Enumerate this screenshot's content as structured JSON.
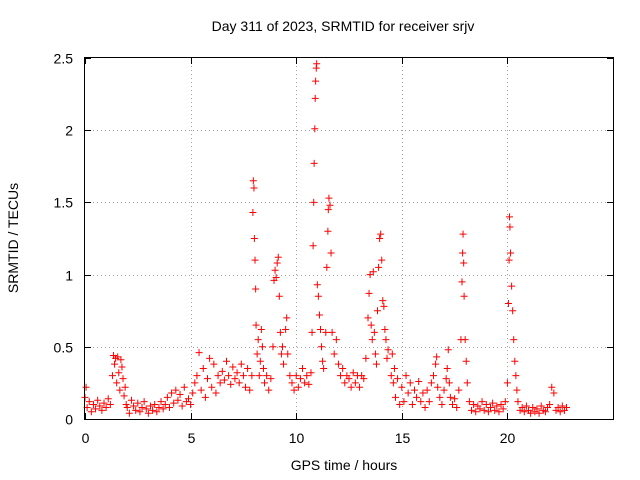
{
  "chart_data": {
    "type": "scatter",
    "title": "Day 311 of 2023, SRMTID for receiver srjv",
    "xlabel": "GPS time / hours",
    "ylabel": "SRMTID / TECUs",
    "xlim": [
      0,
      25
    ],
    "ylim": [
      0,
      2.5
    ],
    "x_ticks": [
      0,
      5,
      10,
      15,
      20
    ],
    "x_tick_labels": [
      "0",
      "5",
      "10",
      "15",
      "20"
    ],
    "y_ticks": [
      0,
      0.5,
      1,
      1.5,
      2,
      2.5
    ],
    "y_tick_labels": [
      "0",
      "0.5",
      "1",
      "1.5",
      "2",
      "2.5"
    ],
    "grid": true,
    "marker": "+",
    "series": [
      {
        "name": "srjv",
        "color": "#ff0000",
        "points": [
          [
            0.0,
            0.15
          ],
          [
            0.05,
            0.22
          ],
          [
            0.1,
            0.08
          ],
          [
            0.2,
            0.12
          ],
          [
            0.3,
            0.05
          ],
          [
            0.4,
            0.1
          ],
          [
            0.5,
            0.07
          ],
          [
            0.6,
            0.13
          ],
          [
            0.7,
            0.09
          ],
          [
            0.8,
            0.06
          ],
          [
            0.9,
            0.11
          ],
          [
            1.0,
            0.08
          ],
          [
            1.1,
            0.14
          ],
          [
            1.2,
            0.1
          ],
          [
            1.3,
            0.3
          ],
          [
            1.35,
            0.44
          ],
          [
            1.4,
            0.38
          ],
          [
            1.45,
            0.42
          ],
          [
            1.5,
            0.25
          ],
          [
            1.55,
            0.43
          ],
          [
            1.6,
            0.32
          ],
          [
            1.65,
            0.2
          ],
          [
            1.7,
            0.41
          ],
          [
            1.75,
            0.36
          ],
          [
            1.8,
            0.28
          ],
          [
            1.85,
            0.16
          ],
          [
            1.9,
            0.22
          ],
          [
            1.95,
            0.1
          ],
          [
            2.0,
            0.08
          ],
          [
            2.1,
            0.04
          ],
          [
            2.2,
            0.13
          ],
          [
            2.3,
            0.09
          ],
          [
            2.4,
            0.06
          ],
          [
            2.5,
            0.11
          ],
          [
            2.6,
            0.05
          ],
          [
            2.7,
            0.08
          ],
          [
            2.8,
            0.12
          ],
          [
            2.9,
            0.07
          ],
          [
            3.0,
            0.04
          ],
          [
            3.1,
            0.09
          ],
          [
            3.2,
            0.06
          ],
          [
            3.3,
            0.1
          ],
          [
            3.4,
            0.05
          ],
          [
            3.5,
            0.08
          ],
          [
            3.6,
            0.12
          ],
          [
            3.7,
            0.07
          ],
          [
            3.8,
            0.1
          ],
          [
            3.9,
            0.15
          ],
          [
            4.0,
            0.08
          ],
          [
            4.1,
            0.18
          ],
          [
            4.2,
            0.11
          ],
          [
            4.3,
            0.2
          ],
          [
            4.4,
            0.13
          ],
          [
            4.5,
            0.17
          ],
          [
            4.6,
            0.09
          ],
          [
            4.7,
            0.22
          ],
          [
            4.8,
            0.12
          ],
          [
            4.9,
            0.14
          ],
          [
            5.0,
            0.1
          ],
          [
            5.1,
            0.18
          ],
          [
            5.2,
            0.25
          ],
          [
            5.3,
            0.3
          ],
          [
            5.4,
            0.46
          ],
          [
            5.5,
            0.2
          ],
          [
            5.6,
            0.35
          ],
          [
            5.7,
            0.15
          ],
          [
            5.8,
            0.28
          ],
          [
            5.9,
            0.42
          ],
          [
            6.0,
            0.22
          ],
          [
            6.1,
            0.38
          ],
          [
            6.2,
            0.18
          ],
          [
            6.3,
            0.3
          ],
          [
            6.4,
            0.25
          ],
          [
            6.5,
            0.33
          ],
          [
            6.6,
            0.27
          ],
          [
            6.7,
            0.4
          ],
          [
            6.8,
            0.3
          ],
          [
            6.9,
            0.24
          ],
          [
            7.0,
            0.36
          ],
          [
            7.1,
            0.28
          ],
          [
            7.2,
            0.32
          ],
          [
            7.3,
            0.25
          ],
          [
            7.4,
            0.38
          ],
          [
            7.5,
            0.3
          ],
          [
            7.6,
            0.22
          ],
          [
            7.7,
            0.35
          ],
          [
            7.8,
            0.2
          ],
          [
            7.9,
            0.3
          ],
          [
            7.95,
            1.43
          ],
          [
            7.97,
            1.65
          ],
          [
            8.0,
            1.6
          ],
          [
            8.02,
            1.25
          ],
          [
            8.05,
            1.1
          ],
          [
            8.08,
            0.9
          ],
          [
            8.1,
            0.65
          ],
          [
            8.15,
            0.45
          ],
          [
            8.2,
            0.55
          ],
          [
            8.25,
            0.3
          ],
          [
            8.3,
            0.4
          ],
          [
            8.35,
            0.62
          ],
          [
            8.4,
            0.5
          ],
          [
            8.45,
            0.35
          ],
          [
            8.5,
            0.25
          ],
          [
            8.6,
            0.3
          ],
          [
            8.7,
            0.2
          ],
          [
            8.8,
            0.28
          ],
          [
            8.9,
            0.5
          ],
          [
            8.95,
            0.96
          ],
          [
            9.0,
            1.03
          ],
          [
            9.05,
            0.98
          ],
          [
            9.1,
            1.08
          ],
          [
            9.15,
            1.12
          ],
          [
            9.2,
            0.85
          ],
          [
            9.25,
            0.6
          ],
          [
            9.3,
            0.45
          ],
          [
            9.35,
            0.5
          ],
          [
            9.4,
            0.38
          ],
          [
            9.5,
            0.62
          ],
          [
            9.55,
            0.7
          ],
          [
            9.6,
            0.45
          ],
          [
            9.7,
            0.3
          ],
          [
            9.8,
            0.25
          ],
          [
            9.9,
            0.2
          ],
          [
            10.0,
            0.3
          ],
          [
            10.1,
            0.22
          ],
          [
            10.2,
            0.28
          ],
          [
            10.3,
            0.35
          ],
          [
            10.4,
            0.25
          ],
          [
            10.5,
            0.3
          ],
          [
            10.6,
            0.24
          ],
          [
            10.7,
            0.32
          ],
          [
            10.75,
            0.6
          ],
          [
            10.8,
            1.2
          ],
          [
            10.83,
            1.5
          ],
          [
            10.85,
            1.77
          ],
          [
            10.88,
            2.01
          ],
          [
            10.9,
            2.22
          ],
          [
            10.92,
            2.34
          ],
          [
            10.95,
            2.43
          ],
          [
            10.97,
            2.46
          ],
          [
            11.0,
            0.93
          ],
          [
            11.05,
            0.85
          ],
          [
            11.1,
            0.72
          ],
          [
            11.15,
            0.62
          ],
          [
            11.2,
            0.5
          ],
          [
            11.25,
            0.4
          ],
          [
            11.3,
            0.35
          ],
          [
            11.4,
            0.6
          ],
          [
            11.45,
            1.05
          ],
          [
            11.5,
            1.3
          ],
          [
            11.52,
            1.45
          ],
          [
            11.55,
            1.53
          ],
          [
            11.6,
            1.48
          ],
          [
            11.65,
            1.15
          ],
          [
            11.7,
            0.6
          ],
          [
            11.8,
            0.45
          ],
          [
            11.9,
            0.55
          ],
          [
            12.0,
            0.38
          ],
          [
            12.1,
            0.3
          ],
          [
            12.2,
            0.35
          ],
          [
            12.3,
            0.25
          ],
          [
            12.4,
            0.3
          ],
          [
            12.5,
            0.28
          ],
          [
            12.6,
            0.22
          ],
          [
            12.7,
            0.32
          ],
          [
            12.8,
            0.25
          ],
          [
            12.9,
            0.3
          ],
          [
            13.0,
            0.22
          ],
          [
            13.1,
            0.3
          ],
          [
            13.2,
            0.28
          ],
          [
            13.3,
            0.42
          ],
          [
            13.4,
            0.7
          ],
          [
            13.45,
            0.87
          ],
          [
            13.5,
            1.0
          ],
          [
            13.55,
            0.65
          ],
          [
            13.6,
            0.55
          ],
          [
            13.65,
            1.02
          ],
          [
            13.7,
            0.6
          ],
          [
            13.75,
            0.45
          ],
          [
            13.8,
            0.38
          ],
          [
            13.85,
            0.75
          ],
          [
            13.9,
            1.05
          ],
          [
            13.95,
            1.25
          ],
          [
            14.0,
            1.28
          ],
          [
            14.05,
            1.1
          ],
          [
            14.1,
            0.82
          ],
          [
            14.15,
            0.78
          ],
          [
            14.2,
            0.62
          ],
          [
            14.25,
            0.55
          ],
          [
            14.3,
            0.42
          ],
          [
            14.35,
            0.48
          ],
          [
            14.5,
            0.3
          ],
          [
            14.55,
            0.45
          ],
          [
            14.6,
            0.25
          ],
          [
            14.65,
            0.35
          ],
          [
            14.7,
            0.15
          ],
          [
            14.8,
            0.28
          ],
          [
            14.9,
            0.1
          ],
          [
            15.0,
            0.22
          ],
          [
            15.1,
            0.12
          ],
          [
            15.2,
            0.3
          ],
          [
            15.3,
            0.18
          ],
          [
            15.4,
            0.25
          ],
          [
            15.5,
            0.1
          ],
          [
            15.6,
            0.2
          ],
          [
            15.7,
            0.15
          ],
          [
            15.8,
            0.26
          ],
          [
            15.9,
            0.12
          ],
          [
            16.0,
            0.18
          ],
          [
            16.1,
            0.08
          ],
          [
            16.2,
            0.2
          ],
          [
            16.3,
            0.12
          ],
          [
            16.4,
            0.25
          ],
          [
            16.5,
            0.3
          ],
          [
            16.6,
            0.38
          ],
          [
            16.65,
            0.43
          ],
          [
            16.7,
            0.22
          ],
          [
            16.8,
            0.15
          ],
          [
            16.9,
            0.1
          ],
          [
            17.0,
            0.2
          ],
          [
            17.1,
            0.28
          ],
          [
            17.15,
            0.35
          ],
          [
            17.2,
            0.48
          ],
          [
            17.25,
            0.25
          ],
          [
            17.3,
            0.15
          ],
          [
            17.4,
            0.1
          ],
          [
            17.5,
            0.14
          ],
          [
            17.6,
            0.08
          ],
          [
            17.7,
            0.2
          ],
          [
            17.8,
            0.55
          ],
          [
            17.85,
            0.95
          ],
          [
            17.88,
            1.15
          ],
          [
            17.9,
            1.28
          ],
          [
            17.93,
            1.08
          ],
          [
            17.95,
            0.85
          ],
          [
            18.0,
            0.55
          ],
          [
            18.05,
            0.4
          ],
          [
            18.1,
            0.25
          ],
          [
            18.2,
            0.12
          ],
          [
            18.3,
            0.06
          ],
          [
            18.4,
            0.1
          ],
          [
            18.5,
            0.05
          ],
          [
            18.6,
            0.09
          ],
          [
            18.7,
            0.07
          ],
          [
            18.8,
            0.12
          ],
          [
            18.9,
            0.06
          ],
          [
            19.0,
            0.1
          ],
          [
            19.1,
            0.05
          ],
          [
            19.2,
            0.08
          ],
          [
            19.3,
            0.11
          ],
          [
            19.4,
            0.06
          ],
          [
            19.5,
            0.09
          ],
          [
            19.6,
            0.05
          ],
          [
            19.7,
            0.1
          ],
          [
            19.8,
            0.07
          ],
          [
            19.9,
            0.12
          ],
          [
            20.0,
            0.25
          ],
          [
            20.05,
            0.8
          ],
          [
            20.08,
            1.1
          ],
          [
            20.1,
            1.4
          ],
          [
            20.12,
            1.33
          ],
          [
            20.15,
            1.15
          ],
          [
            20.2,
            0.92
          ],
          [
            20.25,
            0.75
          ],
          [
            20.3,
            0.55
          ],
          [
            20.35,
            0.4
          ],
          [
            20.4,
            0.3
          ],
          [
            20.45,
            0.2
          ],
          [
            20.5,
            0.12
          ],
          [
            20.6,
            0.06
          ],
          [
            20.7,
            0.08
          ],
          [
            20.8,
            0.05
          ],
          [
            20.9,
            0.09
          ],
          [
            21.0,
            0.06
          ],
          [
            21.1,
            0.04
          ],
          [
            21.2,
            0.08
          ],
          [
            21.3,
            0.05
          ],
          [
            21.4,
            0.07
          ],
          [
            21.5,
            0.04
          ],
          [
            21.6,
            0.09
          ],
          [
            21.7,
            0.06
          ],
          [
            21.8,
            0.05
          ],
          [
            21.9,
            0.08
          ],
          [
            22.0,
            0.1
          ],
          [
            22.1,
            0.22
          ],
          [
            22.2,
            0.18
          ],
          [
            22.3,
            0.06
          ],
          [
            22.4,
            0.08
          ],
          [
            22.5,
            0.05
          ],
          [
            22.6,
            0.09
          ],
          [
            22.7,
            0.06
          ],
          [
            22.8,
            0.08
          ]
        ]
      }
    ]
  }
}
